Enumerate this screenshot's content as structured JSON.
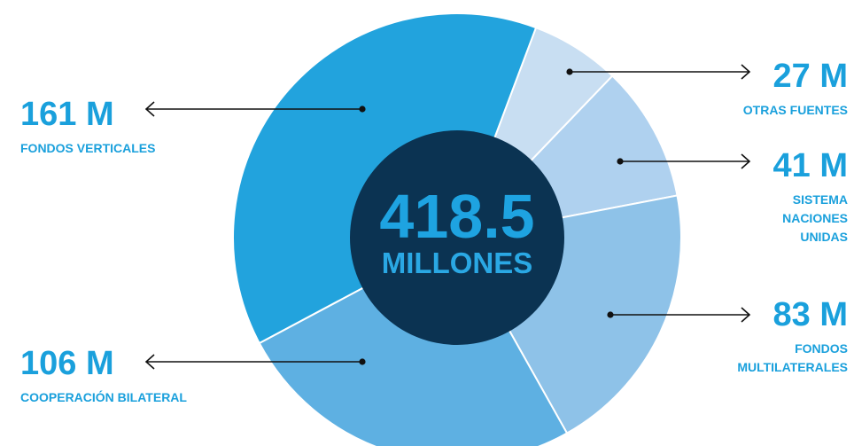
{
  "chart_data": {
    "type": "pie",
    "subtype": "donut",
    "total": {
      "value": "418.5",
      "unit": "MILLONES"
    },
    "slices": [
      {
        "label_lines": [
          "OTRAS FUENTES"
        ],
        "value": 27,
        "value_label": "27 M",
        "color": "#c8def2"
      },
      {
        "label_lines": [
          "SISTEMA",
          "NACIONES",
          "UNIDAS"
        ],
        "value": 41,
        "value_label": "41 M",
        "color": "#afd1ef"
      },
      {
        "label_lines": [
          "FONDOS",
          "MULTILATERALES"
        ],
        "value": 83,
        "value_label": "83 M",
        "color": "#8ec2e8"
      },
      {
        "label_lines": [
          "COOPERACIÓN BILATERAL"
        ],
        "value": 106,
        "value_label": "106 M",
        "color": "#5eb0e2"
      },
      {
        "label_lines": [
          "FONDOS VERTICALES"
        ],
        "value": 161,
        "value_label": "161 M",
        "color": "#22a3dd"
      }
    ],
    "colors": {
      "center": "#0b3352",
      "accent_text": "#1aa0dc",
      "leader": "#111111"
    }
  }
}
